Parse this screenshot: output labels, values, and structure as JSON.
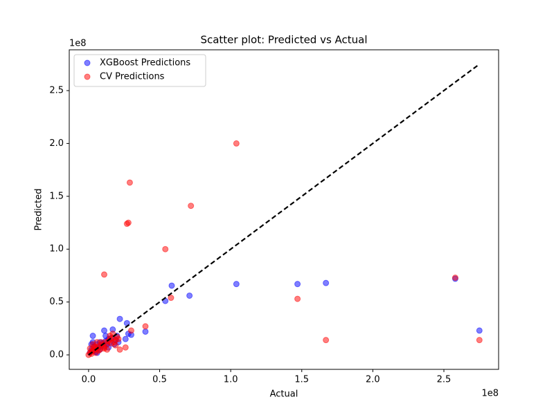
{
  "chart_data": {
    "type": "scatter",
    "title": "Scatter plot: Predicted vs Actual",
    "x_label": "Actual",
    "y_label": "Predicted",
    "x_offset_label": "1e8",
    "y_offset_label": "1e8",
    "xlim": [
      -0.136,
      2.885
    ],
    "ylim": [
      -0.137,
      2.886
    ],
    "xticks": [
      {
        "value": 0,
        "label": "0.0"
      },
      {
        "value": 0.5,
        "label": "0.5"
      },
      {
        "value": 1,
        "label": "1.0"
      },
      {
        "value": 1.5,
        "label": "1.5"
      },
      {
        "value": 2,
        "label": "2.0"
      },
      {
        "value": 2.5,
        "label": "2.5"
      }
    ],
    "yticks": [
      {
        "value": 0,
        "label": "0.0"
      },
      {
        "value": 0.5,
        "label": "0.5"
      },
      {
        "value": 1,
        "label": "1.0"
      },
      {
        "value": 1.5,
        "label": "1.5"
      },
      {
        "value": 2,
        "label": "2.0"
      },
      {
        "value": 2.5,
        "label": "2.5"
      }
    ],
    "legend": "upper left",
    "series": [
      {
        "name": "XGBoost Predictions",
        "color": "#0000ff",
        "x": [
          0.01,
          0.02,
          0.03,
          0.04,
          0.05,
          0.06,
          0.07,
          0.08,
          0.09,
          0.1,
          0.12,
          0.13,
          0.14,
          0.15,
          0.16,
          0.18,
          0.19,
          0.2,
          0.21,
          0.02,
          0.05,
          0.08,
          0.11,
          0.14,
          0.03,
          0.06,
          0.03,
          1.04,
          1.47,
          1.67,
          2.58,
          2.75,
          0.585,
          0.54,
          0.71,
          0.4,
          0.22,
          0.27,
          0.26,
          0.11,
          0.17,
          0.3,
          0.28,
          0.12
        ],
        "y": [
          0.02,
          0.05,
          0.04,
          0.08,
          0.06,
          0.1,
          0.07,
          0.12,
          0.09,
          0.11,
          0.13,
          0.1,
          0.15,
          0.12,
          0.16,
          0.1,
          0.14,
          0.18,
          0.12,
          0.1,
          0.03,
          0.05,
          0.08,
          0.07,
          0.12,
          0.02,
          0.18,
          0.67,
          0.67,
          0.68,
          0.72,
          0.23,
          0.655,
          0.51,
          0.56,
          0.22,
          0.34,
          0.3,
          0.15,
          0.23,
          0.24,
          0.19,
          0.2,
          0.18
        ]
      },
      {
        "name": "CV Predictions",
        "color": "#ff0000",
        "x": [
          0.0,
          0.01,
          0.02,
          0.03,
          0.04,
          0.05,
          0.06,
          0.07,
          0.08,
          0.09,
          0.1,
          0.11,
          0.12,
          0.13,
          0.14,
          0.15,
          0.16,
          0.17,
          0.18,
          0.19,
          0.2,
          0.21,
          0.01,
          0.03,
          0.05,
          0.07,
          0.09,
          0.11,
          0.13,
          0.15,
          0.17,
          0.19,
          0.02,
          0.04,
          0.06,
          1.04,
          0.29,
          0.72,
          0.27,
          0.28,
          0.54,
          0.11,
          0.58,
          1.47,
          1.67,
          2.58,
          2.75,
          0.4,
          0.26,
          0.3,
          0.22
        ],
        "y": [
          0.0,
          0.02,
          0.03,
          0.05,
          0.04,
          0.07,
          0.06,
          0.08,
          0.05,
          0.1,
          0.09,
          0.07,
          0.12,
          0.1,
          0.13,
          0.15,
          0.11,
          0.16,
          0.12,
          0.14,
          0.17,
          0.15,
          0.06,
          0.1,
          0.02,
          0.04,
          0.12,
          0.06,
          0.05,
          0.18,
          0.2,
          0.09,
          0.01,
          0.08,
          0.12,
          2.0,
          1.63,
          1.41,
          1.24,
          1.25,
          1.0,
          0.76,
          0.54,
          0.53,
          0.14,
          0.73,
          0.14,
          0.27,
          0.07,
          0.23,
          0.05
        ]
      }
    ],
    "reference_line": {
      "x": [
        0,
        2.75
      ],
      "y": [
        0,
        2.75
      ],
      "color": "#000000",
      "style": "dashed"
    }
  }
}
